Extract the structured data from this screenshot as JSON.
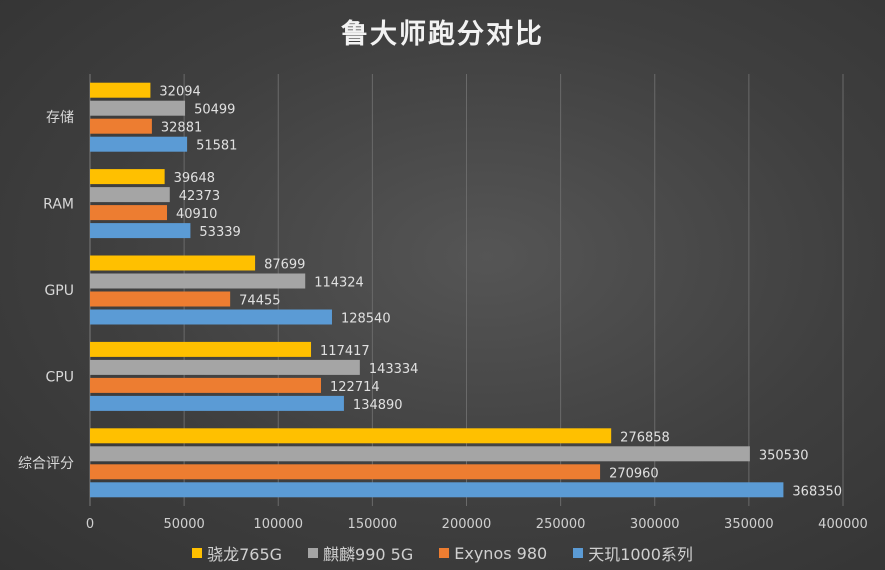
{
  "chart_data": {
    "type": "bar",
    "orientation": "horizontal",
    "title": "鲁大师跑分对比",
    "categories": [
      "存储",
      "RAM",
      "GPU",
      "CPU",
      "综合评分"
    ],
    "series": [
      {
        "name": "骁龙765G",
        "color": "#ffc000",
        "values": [
          32094,
          39648,
          87699,
          117417,
          276858
        ]
      },
      {
        "name": "麒麟990 5G",
        "color": "#a5a5a5",
        "values": [
          50499,
          42373,
          114324,
          143334,
          350530
        ]
      },
      {
        "name": "Exynos 980",
        "color": "#ed7d31",
        "values": [
          32881,
          40910,
          74455,
          122714,
          270960
        ]
      },
      {
        "name": "天玑1000系列",
        "color": "#5b9bd5",
        "values": [
          51581,
          53339,
          128540,
          134890,
          368350
        ]
      }
    ],
    "xlim": [
      0,
      400000
    ],
    "xticks": [
      "0",
      "50000",
      "100000",
      "150000",
      "200000",
      "250000",
      "300000",
      "350000",
      "400000"
    ],
    "grid": true,
    "legend_position": "bottom"
  }
}
